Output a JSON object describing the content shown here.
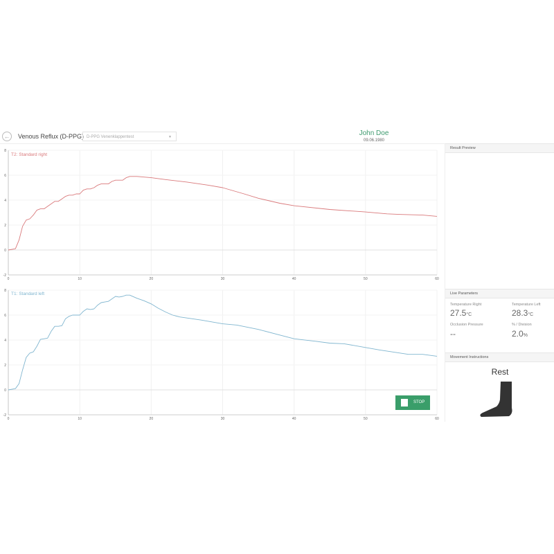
{
  "header": {
    "back_icon": "arrow-left-circle-icon",
    "title": "Venous Reflux (D-PPG)",
    "test_select": "D-PPG Venenklappentest",
    "patient_name": "John Doe",
    "patient_dob": "09.06.1980"
  },
  "colors": {
    "right": "#d9787a",
    "left": "#7fb5cf",
    "accent": "#3a9e6a"
  },
  "chart_data": [
    {
      "type": "line",
      "title": "T2: Standard right",
      "xlim": [
        0,
        60
      ],
      "ylim": [
        -2,
        8
      ],
      "xticks": [
        0,
        10,
        20,
        30,
        40,
        50,
        60
      ],
      "yticks": [
        -2,
        0,
        2,
        4,
        6,
        8
      ],
      "grid": true,
      "x": [
        0,
        1,
        1.5,
        2,
        2.5,
        3,
        3.5,
        4,
        4.5,
        5,
        5.5,
        6,
        6.5,
        7,
        7.5,
        8,
        8.5,
        9,
        9.5,
        10,
        10.5,
        11,
        11.5,
        12,
        12.5,
        13,
        13.5,
        14,
        14.5,
        15,
        15.5,
        16,
        16.5,
        17,
        18,
        20,
        22,
        25,
        28,
        30,
        33,
        35,
        38,
        40,
        45,
        50,
        53,
        55,
        58,
        60
      ],
      "y": [
        0,
        0.1,
        0.8,
        1.9,
        2.4,
        2.5,
        2.8,
        3.2,
        3.3,
        3.3,
        3.5,
        3.7,
        3.9,
        3.9,
        4.1,
        4.3,
        4.4,
        4.4,
        4.5,
        4.5,
        4.8,
        4.9,
        4.9,
        5.0,
        5.2,
        5.3,
        5.3,
        5.3,
        5.5,
        5.6,
        5.6,
        5.6,
        5.8,
        5.9,
        5.9,
        5.8,
        5.65,
        5.45,
        5.2,
        5.0,
        4.5,
        4.15,
        3.75,
        3.55,
        3.25,
        3.05,
        2.9,
        2.85,
        2.8,
        2.7
      ]
    },
    {
      "type": "line",
      "title": "T1: Standard left",
      "xlim": [
        0,
        60
      ],
      "ylim": [
        -2,
        8
      ],
      "xticks": [
        0,
        10,
        20,
        30,
        40,
        50,
        60
      ],
      "yticks": [
        -2,
        0,
        2,
        4,
        6,
        8
      ],
      "grid": true,
      "x": [
        0,
        1,
        1.5,
        2,
        2.5,
        3,
        3.5,
        4,
        4.5,
        5,
        5.5,
        6,
        6.5,
        7,
        7.5,
        8,
        8.5,
        9,
        9.5,
        10,
        10.5,
        11,
        11.5,
        12,
        12.5,
        13,
        13.5,
        14,
        14.5,
        15,
        15.5,
        16,
        16.5,
        17,
        18,
        19,
        20,
        21,
        22,
        23,
        24,
        27,
        30,
        32,
        35,
        38,
        40,
        43,
        45,
        47,
        50,
        52,
        56,
        57,
        58,
        60
      ],
      "y": [
        0,
        0.1,
        0.5,
        1.6,
        2.6,
        2.95,
        3.05,
        3.5,
        4.05,
        4.1,
        4.15,
        4.7,
        5.1,
        5.1,
        5.15,
        5.7,
        5.9,
        6.0,
        6.0,
        6.0,
        6.3,
        6.5,
        6.45,
        6.5,
        6.8,
        7.0,
        7.05,
        7.1,
        7.3,
        7.5,
        7.45,
        7.5,
        7.6,
        7.6,
        7.35,
        7.15,
        6.9,
        6.55,
        6.25,
        6.0,
        5.85,
        5.6,
        5.3,
        5.2,
        4.85,
        4.4,
        4.1,
        3.9,
        3.75,
        3.7,
        3.4,
        3.2,
        2.85,
        2.85,
        2.85,
        2.7
      ]
    }
  ],
  "stop_button": {
    "icon": "stop-square-icon",
    "label": "STOP"
  },
  "result_preview": {
    "title": "Result Preview"
  },
  "live": {
    "title": "Live Parameters",
    "temp_right_label": "Temperature Right",
    "temp_right": "27.5",
    "temp_left_label": "Temperature Left",
    "temp_left": "28.3",
    "unit_c": "°C",
    "occlusion_label": "Occlusion Pressure",
    "occlusion": "--",
    "division_label": "% / Division",
    "division": "2.0",
    "unit_pct": "%"
  },
  "movement": {
    "title": "Movement Instructions",
    "instruction": "Rest",
    "icon": "foot-icon"
  }
}
